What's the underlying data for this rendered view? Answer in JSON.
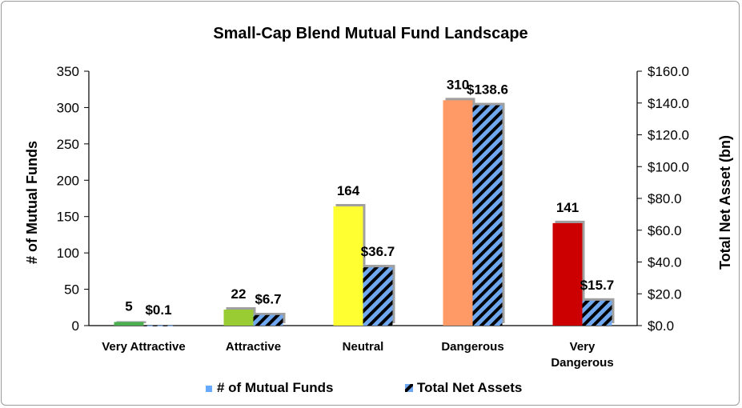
{
  "chart_data": {
    "type": "bar",
    "title": "Small-Cap Blend Mutual Fund Landscape",
    "categories": [
      "Very Attractive",
      "Attractive",
      "Neutral",
      "Dangerous",
      "Very Dangerous"
    ],
    "category_lines": [
      [
        "Very Attractive"
      ],
      [
        "Attractive"
      ],
      [
        "Neutral"
      ],
      [
        "Dangerous"
      ],
      [
        "Very",
        "Dangerous"
      ]
    ],
    "series": [
      {
        "name": "# of Mutual Funds",
        "axis": "left",
        "values": [
          5,
          22,
          164,
          310,
          141
        ],
        "labels": [
          "5",
          "22",
          "164",
          "310",
          "141"
        ],
        "colors": [
          "#4CAF50",
          "#99CC33",
          "#FFFF33",
          "#FF9966",
          "#CC0000"
        ],
        "legend_color": "#66AAFF"
      },
      {
        "name": "Total Net Assets",
        "axis": "right",
        "values": [
          0.1,
          6.7,
          36.7,
          138.6,
          15.7
        ],
        "labels": [
          "$0.1",
          "$6.7",
          "$36.7",
          "$138.6",
          "$15.7"
        ],
        "fill": "#6FA8F0",
        "hatch": "#000000"
      }
    ],
    "ylabel": "# of Mutual Funds",
    "ylim": [
      0,
      350
    ],
    "yticks": [
      "0",
      "50",
      "100",
      "150",
      "200",
      "250",
      "300",
      "350"
    ],
    "y2label": "Total Net Asset (bn)",
    "y2lim": [
      0,
      160
    ],
    "y2ticks": [
      "$0.0",
      "$20.0",
      "$40.0",
      "$60.0",
      "$80.0",
      "$100.0",
      "$120.0",
      "$140.0",
      "$160.0"
    ],
    "grid": false,
    "legend_position": "bottom"
  }
}
